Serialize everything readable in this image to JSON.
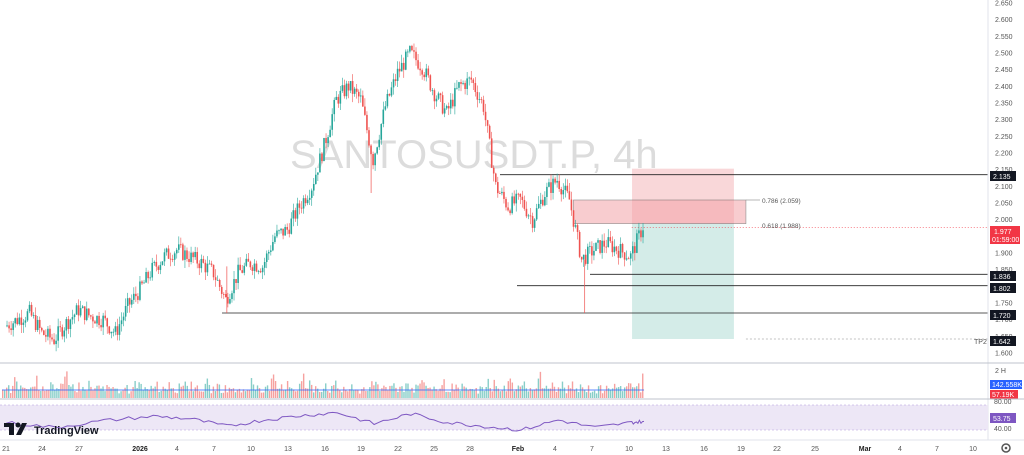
{
  "watermark": "SANTOSUSDT.P, 4h",
  "brand": "TradingView",
  "price_tags": {
    "current": "1.977",
    "countdown": "01:59:00",
    "stop": "2.135",
    "entry_low": "1.836",
    "mid": "1.802",
    "support": "1.720",
    "tp2": "1.642",
    "tp2_label": "TP2"
  },
  "fib_labels": [
    "0.786 (2.059)",
    "0.618 (1.988)"
  ],
  "volume_pane": {
    "label": "2 H",
    "tag1": "142.558K",
    "tag2": "57.19K"
  },
  "rsi_pane": {
    "upper": "80.00",
    "value": "53.75",
    "lower": "40.00"
  },
  "colors": {
    "up": "#26a69a",
    "down": "#ef5350",
    "short_zone": "#f7cdd0",
    "target_zone": "#cfeae5",
    "rsi": "#7e57c2",
    "tag_bg": "#131722",
    "current_tag": "#f23645"
  },
  "chart_data": {
    "type": "candlestick",
    "title": "SANTOSUSDT.P, 4h",
    "xlabel": "",
    "ylabel": "",
    "ylim": [
      1.6,
      2.65
    ],
    "yticks": [
      "2.650",
      "2.600",
      "2.550",
      "2.500",
      "2.450",
      "2.400",
      "2.350",
      "2.300",
      "2.250",
      "2.200",
      "2.150",
      "2.100",
      "2.050",
      "2.000",
      "1.950",
      "1.900",
      "1.850",
      "1.800",
      "1.750",
      "1.700",
      "1.650",
      "1.600"
    ],
    "xticks": [
      "21",
      "24",
      "27",
      "2026",
      "4",
      "7",
      "10",
      "13",
      "16",
      "19",
      "22",
      "25",
      "28",
      "Feb",
      "4",
      "7",
      "10",
      "13",
      "16",
      "19",
      "22",
      "25",
      "Mar",
      "4",
      "7",
      "10"
    ],
    "x_start": "2025-12-21",
    "close_path": [
      {
        "x": "2025-12-21",
        "y": 1.68
      },
      {
        "x": "2025-12-22",
        "y": 1.7
      },
      {
        "x": "2025-12-23",
        "y": 1.72
      },
      {
        "x": "2025-12-24",
        "y": 1.66
      },
      {
        "x": "2025-12-25",
        "y": 1.64
      },
      {
        "x": "2025-12-26",
        "y": 1.69
      },
      {
        "x": "2025-12-27",
        "y": 1.73
      },
      {
        "x": "2025-12-28",
        "y": 1.71
      },
      {
        "x": "2025-12-29",
        "y": 1.7
      },
      {
        "x": "2025-12-30",
        "y": 1.66
      },
      {
        "x": "2025-12-31",
        "y": 1.74
      },
      {
        "x": "2026-01-01",
        "y": 1.79
      },
      {
        "x": "2026-01-02",
        "y": 1.85
      },
      {
        "x": "2026-01-03",
        "y": 1.89
      },
      {
        "x": "2026-01-04",
        "y": 1.91
      },
      {
        "x": "2026-01-05",
        "y": 1.89
      },
      {
        "x": "2026-01-06",
        "y": 1.87
      },
      {
        "x": "2026-01-07",
        "y": 1.84
      },
      {
        "x": "2026-01-08",
        "y": 1.76
      },
      {
        "x": "2026-01-09",
        "y": 1.84
      },
      {
        "x": "2026-01-10",
        "y": 1.87
      },
      {
        "x": "2026-01-11",
        "y": 1.86
      },
      {
        "x": "2026-01-12",
        "y": 1.95
      },
      {
        "x": "2026-01-13",
        "y": 1.97
      },
      {
        "x": "2026-01-14",
        "y": 2.04
      },
      {
        "x": "2026-01-15",
        "y": 2.1
      },
      {
        "x": "2026-01-16",
        "y": 2.22
      },
      {
        "x": "2026-01-17",
        "y": 2.36
      },
      {
        "x": "2026-01-18",
        "y": 2.4
      },
      {
        "x": "2026-01-19",
        "y": 2.36
      },
      {
        "x": "2026-01-20",
        "y": 2.18
      },
      {
        "x": "2026-01-21",
        "y": 2.34
      },
      {
        "x": "2026-01-22",
        "y": 2.44
      },
      {
        "x": "2026-01-23",
        "y": 2.5
      },
      {
        "x": "2026-01-24",
        "y": 2.46
      },
      {
        "x": "2026-01-25",
        "y": 2.38
      },
      {
        "x": "2026-01-26",
        "y": 2.32
      },
      {
        "x": "2026-01-27",
        "y": 2.4
      },
      {
        "x": "2026-01-28",
        "y": 2.42
      },
      {
        "x": "2026-01-29",
        "y": 2.34
      },
      {
        "x": "2026-01-30",
        "y": 2.1
      },
      {
        "x": "2026-01-31",
        "y": 2.04
      },
      {
        "x": "2026-02-01",
        "y": 2.06
      },
      {
        "x": "2026-02-02",
        "y": 2.0
      },
      {
        "x": "2026-02-03",
        "y": 2.08
      },
      {
        "x": "2026-02-04",
        "y": 2.12
      },
      {
        "x": "2026-02-05",
        "y": 2.06
      },
      {
        "x": "2026-02-06",
        "y": 1.88
      },
      {
        "x": "2026-02-07",
        "y": 1.91
      },
      {
        "x": "2026-02-08",
        "y": 1.93
      },
      {
        "x": "2026-02-09",
        "y": 1.91
      },
      {
        "x": "2026-02-10",
        "y": 1.89
      },
      {
        "x": "2026-02-11",
        "y": 1.98
      }
    ],
    "volume_sample": [
      22,
      18,
      25,
      30,
      20,
      28,
      45,
      35,
      26,
      40,
      30,
      22,
      26,
      34,
      28,
      30,
      40,
      50,
      36,
      28,
      24,
      30,
      33,
      27,
      60,
      38,
      30,
      26,
      22,
      30,
      36,
      44,
      56,
      32,
      28,
      40,
      30,
      22,
      34,
      30,
      26,
      24,
      30,
      40,
      28,
      22,
      26,
      30,
      36,
      28,
      24,
      20,
      30,
      26,
      22,
      24,
      28,
      22,
      20
    ],
    "rsi_path": [
      {
        "x": "2025-12-21",
        "y": 52
      },
      {
        "x": "2025-12-25",
        "y": 44
      },
      {
        "x": "2025-12-29",
        "y": 55
      },
      {
        "x": "2026-01-02",
        "y": 62
      },
      {
        "x": "2026-01-05",
        "y": 58
      },
      {
        "x": "2026-01-08",
        "y": 46
      },
      {
        "x": "2026-01-11",
        "y": 56
      },
      {
        "x": "2026-01-14",
        "y": 63
      },
      {
        "x": "2026-01-17",
        "y": 68
      },
      {
        "x": "2026-01-20",
        "y": 50
      },
      {
        "x": "2026-01-23",
        "y": 66
      },
      {
        "x": "2026-01-26",
        "y": 52
      },
      {
        "x": "2026-01-29",
        "y": 46
      },
      {
        "x": "2026-02-01",
        "y": 40
      },
      {
        "x": "2026-02-04",
        "y": 56
      },
      {
        "x": "2026-02-07",
        "y": 44
      },
      {
        "x": "2026-02-10",
        "y": 52
      },
      {
        "x": "2026-02-11",
        "y": 53.75
      }
    ],
    "levels": [
      2.135,
      1.836,
      1.802,
      1.72,
      1.642
    ],
    "fib": [
      2.059,
      1.988
    ],
    "short_position": {
      "stop": 2.135,
      "entry": 1.988,
      "target": 1.642,
      "from": "2026-02-11",
      "to": "2026-02-18"
    },
    "zone": {
      "top": 2.059,
      "bottom": 1.988,
      "from": "2026-02-05",
      "to": "2026-02-18"
    }
  }
}
